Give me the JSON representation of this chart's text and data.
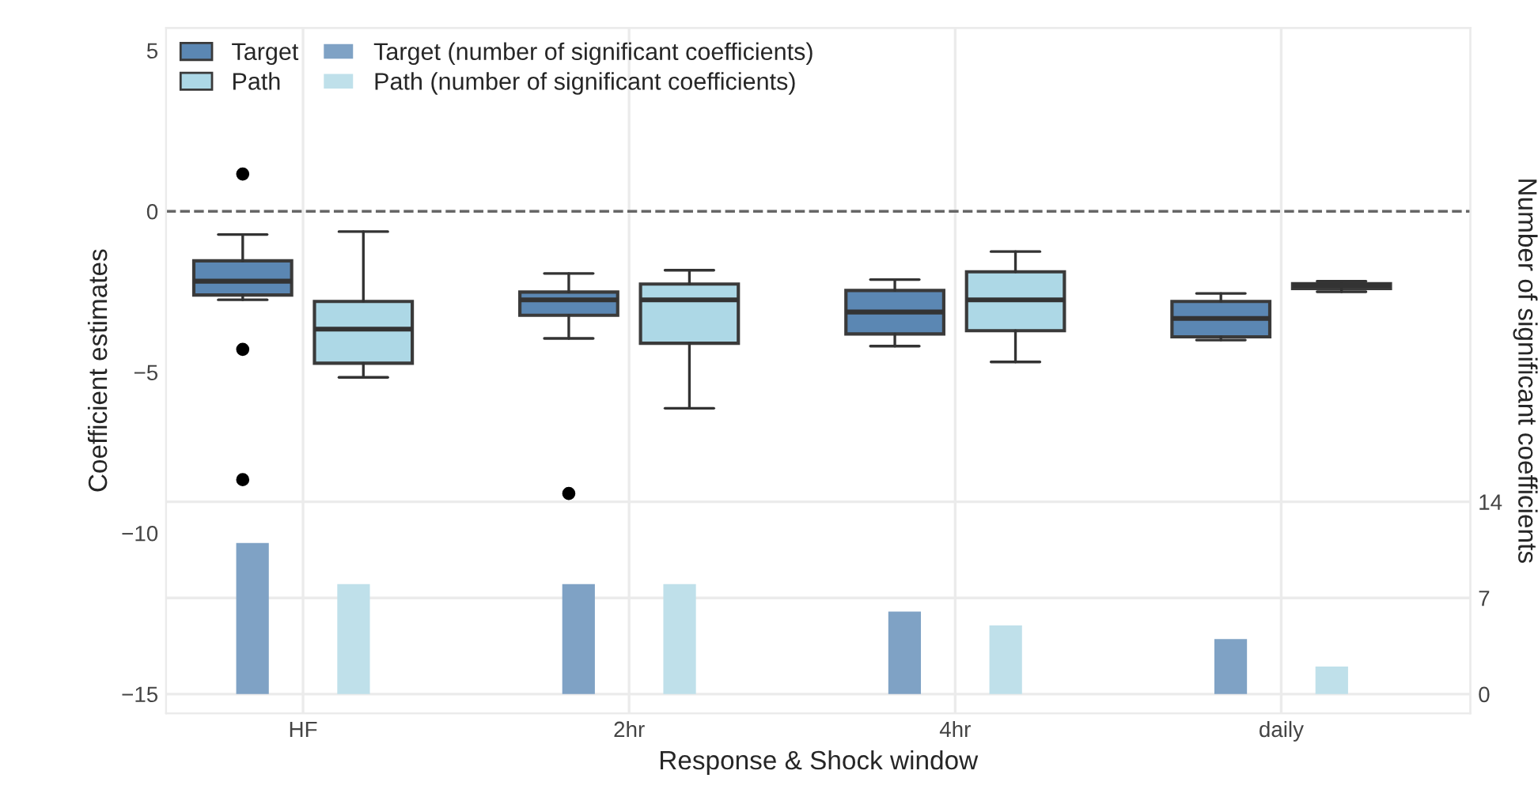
{
  "chart_data": {
    "type": "box",
    "xlabel": "Response & Shock window",
    "ylabel": "Coefficient estimates",
    "y2label": "Number of significant coefficients",
    "categories": [
      "HF",
      "2hr",
      "4hr",
      "daily"
    ],
    "ylim": [
      -15.6,
      5.7
    ],
    "yticks": [
      {
        "value": -15,
        "label": "−15"
      },
      {
        "value": -10,
        "label": "−10"
      },
      {
        "value": -5,
        "label": "−5"
      },
      0,
      5
    ],
    "y2lim": [
      -1.4,
      48.5
    ],
    "y2ticks": [
      0,
      7,
      14
    ],
    "grid": true,
    "legend": "top left",
    "ref_lines": [
      {
        "axis": "y",
        "value": 0,
        "color": "#666666",
        "line_style": "dashed"
      }
    ],
    "series": [
      {
        "name": "Target",
        "color": "#5b87b3",
        "boxes": [
          {
            "low": -2.75,
            "q1": -2.6,
            "median": -2.17,
            "q3": -1.54,
            "high": -0.72,
            "outliers": [
              1.16,
              -4.29,
              -8.34
            ]
          },
          {
            "low": -3.95,
            "q1": -3.23,
            "median": -2.75,
            "q3": -2.51,
            "high": -1.93,
            "outliers": [
              -8.77
            ]
          },
          {
            "low": -4.19,
            "q1": -3.81,
            "median": -3.13,
            "q3": -2.46,
            "high": -2.12
          },
          {
            "low": -4.0,
            "q1": -3.9,
            "median": -3.33,
            "q3": -2.8,
            "high": -2.55
          }
        ]
      },
      {
        "name": "Path",
        "color": "#add8e6",
        "boxes": [
          {
            "low": -5.16,
            "q1": -4.72,
            "median": -3.66,
            "q3": -2.8,
            "high": -0.63
          },
          {
            "low": -6.12,
            "q1": -4.1,
            "median": -2.75,
            "q3": -2.26,
            "high": -1.83
          },
          {
            "low": -4.68,
            "q1": -3.71,
            "median": -2.75,
            "q3": -1.88,
            "high": -1.25
          },
          {
            "low": -2.5,
            "q1": -2.4,
            "median": -2.3,
            "q3": -2.25,
            "high": -2.17
          }
        ]
      },
      {
        "name": "Target (number of significant coefficients)",
        "type": "bar",
        "axis": "y2",
        "color": "#7fa2c5",
        "values": [
          11,
          8,
          6,
          4
        ]
      },
      {
        "name": "Path (number of significant coefficients)",
        "type": "bar",
        "axis": "y2",
        "color": "#bfe0ea",
        "values": [
          8,
          8,
          5,
          2
        ]
      }
    ]
  }
}
